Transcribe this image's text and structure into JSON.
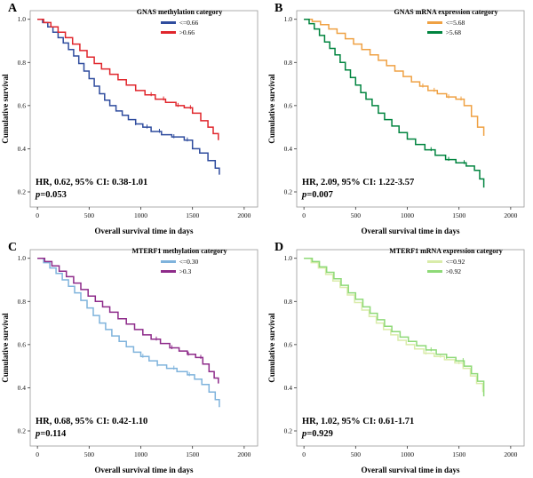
{
  "figure": {
    "x_axis_label": "Overall survival time in days",
    "y_axis_label": "Cumulative survival"
  },
  "chart_data": [
    {
      "type": "line",
      "subtype": "kaplan-meier-step",
      "panel": "A",
      "title": "GNAS methylation category",
      "xlabel": "Overall survival time in days",
      "ylabel": "Cumulative survival",
      "xlim": [
        0,
        2000
      ],
      "ylim": [
        0.13,
        1.04
      ],
      "xticks": [
        0,
        500,
        1000,
        1500,
        2000
      ],
      "yticks": [
        0.2,
        0.4,
        0.6,
        0.8,
        1.0
      ],
      "legend_position": "top",
      "hr_text": "HR, 0.62, 95% CI: 0.38-1.01",
      "p_prefix": "p",
      "p_value": "=0.053",
      "series": [
        {
          "name": "<=0.66",
          "color": "#2f4c9e",
          "points": [
            [
              0,
              1.0
            ],
            [
              50,
              0.985
            ],
            [
              100,
              0.965
            ],
            [
              150,
              0.94
            ],
            [
              200,
              0.915
            ],
            [
              250,
              0.89
            ],
            [
              300,
              0.86
            ],
            [
              350,
              0.83
            ],
            [
              400,
              0.795
            ],
            [
              450,
              0.76
            ],
            [
              500,
              0.725
            ],
            [
              550,
              0.69
            ],
            [
              600,
              0.655
            ],
            [
              650,
              0.625
            ],
            [
              700,
              0.6
            ],
            [
              760,
              0.575
            ],
            [
              820,
              0.555
            ],
            [
              880,
              0.535
            ],
            [
              950,
              0.515
            ],
            [
              1020,
              0.5
            ],
            [
              1100,
              0.48
            ],
            [
              1200,
              0.465
            ],
            [
              1300,
              0.455
            ],
            [
              1420,
              0.44
            ],
            [
              1500,
              0.4
            ],
            [
              1570,
              0.38
            ],
            [
              1650,
              0.345
            ],
            [
              1720,
              0.31
            ],
            [
              1760,
              0.28
            ]
          ],
          "censor_times": [
            950,
            1060,
            1180,
            1320,
            1450
          ]
        },
        {
          "name": ">0.66",
          "color": "#e0262c",
          "points": [
            [
              0,
              1.0
            ],
            [
              60,
              0.985
            ],
            [
              130,
              0.965
            ],
            [
              200,
              0.94
            ],
            [
              270,
              0.915
            ],
            [
              340,
              0.885
            ],
            [
              410,
              0.855
            ],
            [
              480,
              0.825
            ],
            [
              550,
              0.795
            ],
            [
              620,
              0.77
            ],
            [
              700,
              0.745
            ],
            [
              780,
              0.72
            ],
            [
              860,
              0.695
            ],
            [
              950,
              0.67
            ],
            [
              1040,
              0.65
            ],
            [
              1140,
              0.63
            ],
            [
              1240,
              0.615
            ],
            [
              1340,
              0.6
            ],
            [
              1420,
              0.59
            ],
            [
              1500,
              0.565
            ],
            [
              1580,
              0.53
            ],
            [
              1650,
              0.5
            ],
            [
              1700,
              0.47
            ],
            [
              1750,
              0.44
            ]
          ],
          "censor_times": [
            1100,
            1220,
            1360,
            1480
          ]
        }
      ]
    },
    {
      "type": "line",
      "subtype": "kaplan-meier-step",
      "panel": "B",
      "title": "GNAS mRNA expression category",
      "xlabel": "Overall survival time in days",
      "ylabel": "Cumulative survival",
      "xlim": [
        0,
        2000
      ],
      "ylim": [
        0.13,
        1.04
      ],
      "xticks": [
        0,
        500,
        1000,
        1500,
        2000
      ],
      "yticks": [
        0.2,
        0.4,
        0.6,
        0.8,
        1.0
      ],
      "legend_position": "top",
      "hr_text": "HR, 2.09, 95% CI: 1.22-3.57",
      "p_prefix": "p",
      "p_value": "=0.007",
      "series": [
        {
          "name": "<=5.68",
          "color": "#efa143",
          "points": [
            [
              0,
              1.0
            ],
            [
              80,
              0.99
            ],
            [
              160,
              0.975
            ],
            [
              240,
              0.955
            ],
            [
              320,
              0.935
            ],
            [
              400,
              0.91
            ],
            [
              480,
              0.885
            ],
            [
              560,
              0.86
            ],
            [
              640,
              0.835
            ],
            [
              720,
              0.81
            ],
            [
              800,
              0.785
            ],
            [
              880,
              0.76
            ],
            [
              960,
              0.735
            ],
            [
              1040,
              0.71
            ],
            [
              1120,
              0.69
            ],
            [
              1200,
              0.67
            ],
            [
              1290,
              0.655
            ],
            [
              1380,
              0.64
            ],
            [
              1470,
              0.63
            ],
            [
              1550,
              0.6
            ],
            [
              1620,
              0.55
            ],
            [
              1680,
              0.5
            ],
            [
              1740,
              0.46
            ]
          ],
          "censor_times": [
            1150,
            1260,
            1400,
            1520
          ]
        },
        {
          "name": ">5.68",
          "color": "#00843f",
          "points": [
            [
              0,
              1.0
            ],
            [
              50,
              0.98
            ],
            [
              100,
              0.955
            ],
            [
              150,
              0.925
            ],
            [
              200,
              0.895
            ],
            [
              250,
              0.865
            ],
            [
              300,
              0.835
            ],
            [
              350,
              0.8
            ],
            [
              400,
              0.765
            ],
            [
              450,
              0.73
            ],
            [
              500,
              0.695
            ],
            [
              550,
              0.66
            ],
            [
              600,
              0.63
            ],
            [
              660,
              0.6
            ],
            [
              720,
              0.565
            ],
            [
              780,
              0.535
            ],
            [
              850,
              0.505
            ],
            [
              920,
              0.475
            ],
            [
              1000,
              0.445
            ],
            [
              1080,
              0.42
            ],
            [
              1170,
              0.395
            ],
            [
              1270,
              0.37
            ],
            [
              1370,
              0.35
            ],
            [
              1470,
              0.335
            ],
            [
              1570,
              0.32
            ],
            [
              1650,
              0.3
            ],
            [
              1700,
              0.26
            ],
            [
              1740,
              0.22
            ]
          ],
          "censor_times": [
            1230,
            1400,
            1550
          ]
        }
      ]
    },
    {
      "type": "line",
      "subtype": "kaplan-meier-step",
      "panel": "C",
      "title": "MTERF1 methylation category",
      "xlabel": "Overall survival time in days",
      "ylabel": "Cumulative survival",
      "xlim": [
        0,
        2000
      ],
      "ylim": [
        0.13,
        1.04
      ],
      "xticks": [
        0,
        500,
        1000,
        1500,
        2000
      ],
      "yticks": [
        0.2,
        0.4,
        0.6,
        0.8,
        1.0
      ],
      "legend_position": "top",
      "hr_text": "HR, 0.68, 95% CI: 0.42-1.10",
      "p_prefix": "p",
      "p_value": "=0.114",
      "series": [
        {
          "name": "<=0.30",
          "color": "#7fb3dc",
          "points": [
            [
              0,
              1.0
            ],
            [
              60,
              0.98
            ],
            [
              120,
              0.955
            ],
            [
              180,
              0.93
            ],
            [
              240,
              0.9
            ],
            [
              300,
              0.87
            ],
            [
              360,
              0.84
            ],
            [
              420,
              0.805
            ],
            [
              480,
              0.77
            ],
            [
              540,
              0.735
            ],
            [
              600,
              0.7
            ],
            [
              660,
              0.67
            ],
            [
              720,
              0.64
            ],
            [
              790,
              0.615
            ],
            [
              860,
              0.59
            ],
            [
              930,
              0.565
            ],
            [
              1000,
              0.545
            ],
            [
              1080,
              0.525
            ],
            [
              1160,
              0.505
            ],
            [
              1250,
              0.49
            ],
            [
              1350,
              0.475
            ],
            [
              1450,
              0.46
            ],
            [
              1520,
              0.44
            ],
            [
              1590,
              0.415
            ],
            [
              1660,
              0.38
            ],
            [
              1720,
              0.345
            ],
            [
              1760,
              0.31
            ]
          ],
          "censor_times": [
            1020,
            1160,
            1320,
            1470
          ]
        },
        {
          "name": ">0.3",
          "color": "#8e2b8a",
          "points": [
            [
              0,
              1.0
            ],
            [
              70,
              0.985
            ],
            [
              140,
              0.965
            ],
            [
              210,
              0.94
            ],
            [
              280,
              0.915
            ],
            [
              350,
              0.885
            ],
            [
              420,
              0.855
            ],
            [
              490,
              0.825
            ],
            [
              560,
              0.8
            ],
            [
              630,
              0.775
            ],
            [
              700,
              0.75
            ],
            [
              780,
              0.72
            ],
            [
              860,
              0.695
            ],
            [
              940,
              0.67
            ],
            [
              1020,
              0.645
            ],
            [
              1100,
              0.625
            ],
            [
              1190,
              0.605
            ],
            [
              1280,
              0.585
            ],
            [
              1370,
              0.57
            ],
            [
              1450,
              0.555
            ],
            [
              1530,
              0.54
            ],
            [
              1600,
              0.51
            ],
            [
              1660,
              0.475
            ],
            [
              1710,
              0.445
            ],
            [
              1750,
              0.42
            ]
          ],
          "censor_times": [
            1150,
            1300,
            1460,
            1580
          ]
        }
      ]
    },
    {
      "type": "line",
      "subtype": "kaplan-meier-step",
      "panel": "D",
      "title": "MTERF1 mRNA expression category",
      "xlabel": "Overall survival time in days",
      "ylabel": "Cumulative survival",
      "xlim": [
        0,
        2000
      ],
      "ylim": [
        0.13,
        1.04
      ],
      "xticks": [
        0,
        500,
        1000,
        1500,
        2000
      ],
      "yticks": [
        0.2,
        0.4,
        0.6,
        0.8,
        1.0
      ],
      "legend_position": "top",
      "hr_text": "HR, 1.02, 95% CI: 0.61-1.71",
      "p_prefix": "p",
      "p_value": "=0.929",
      "series": [
        {
          "name": "<=0.92",
          "color": "#d9ecaa",
          "points": [
            [
              0,
              1.0
            ],
            [
              70,
              0.98
            ],
            [
              140,
              0.955
            ],
            [
              210,
              0.925
            ],
            [
              280,
              0.895
            ],
            [
              350,
              0.865
            ],
            [
              420,
              0.83
            ],
            [
              490,
              0.795
            ],
            [
              560,
              0.76
            ],
            [
              630,
              0.73
            ],
            [
              700,
              0.7
            ],
            [
              770,
              0.67
            ],
            [
              840,
              0.645
            ],
            [
              910,
              0.62
            ],
            [
              990,
              0.6
            ],
            [
              1070,
              0.58
            ],
            [
              1160,
              0.56
            ],
            [
              1260,
              0.545
            ],
            [
              1360,
              0.53
            ],
            [
              1460,
              0.515
            ],
            [
              1540,
              0.49
            ],
            [
              1610,
              0.455
            ],
            [
              1670,
              0.42
            ],
            [
              1730,
              0.38
            ]
          ],
          "censor_times": [
            1180,
            1320,
            1500
          ]
        },
        {
          "name": ">0.92",
          "color": "#8ed977",
          "points": [
            [
              0,
              1.0
            ],
            [
              80,
              0.985
            ],
            [
              150,
              0.96
            ],
            [
              220,
              0.935
            ],
            [
              290,
              0.905
            ],
            [
              360,
              0.875
            ],
            [
              430,
              0.84
            ],
            [
              500,
              0.81
            ],
            [
              570,
              0.775
            ],
            [
              640,
              0.745
            ],
            [
              710,
              0.715
            ],
            [
              780,
              0.685
            ],
            [
              850,
              0.66
            ],
            [
              930,
              0.635
            ],
            [
              1010,
              0.615
            ],
            [
              1090,
              0.595
            ],
            [
              1180,
              0.575
            ],
            [
              1280,
              0.555
            ],
            [
              1380,
              0.54
            ],
            [
              1470,
              0.525
            ],
            [
              1550,
              0.5
            ],
            [
              1620,
              0.465
            ],
            [
              1680,
              0.43
            ],
            [
              1740,
              0.36
            ]
          ],
          "censor_times": [
            1230,
            1380,
            1540
          ]
        }
      ]
    }
  ]
}
